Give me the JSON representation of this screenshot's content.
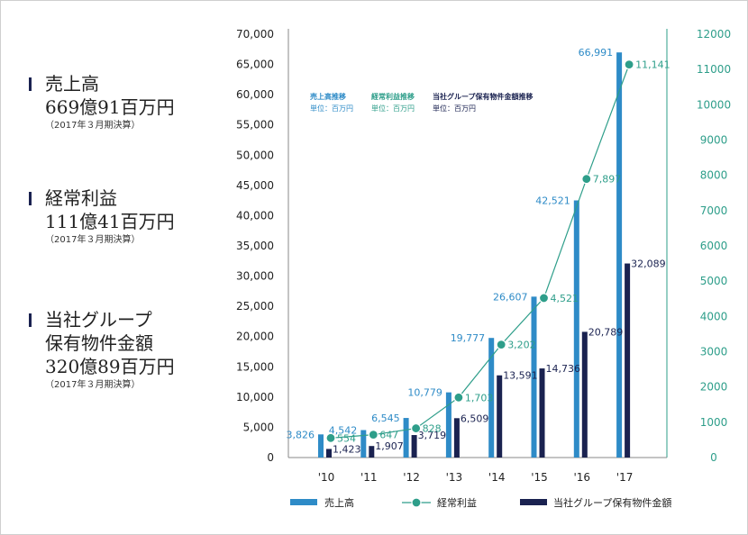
{
  "summary": [
    {
      "label": "売上高",
      "amount": "669億91百万円",
      "note": "（2017年３月期決算）"
    },
    {
      "label": "経常利益",
      "amount": "111億41百万円",
      "note": "（2017年３月期決算）"
    },
    {
      "label": "当社グループ\n保有物件金額",
      "amount": "320億89百万円",
      "note": "（2017年３月期決算）"
    }
  ],
  "colors": {
    "sales": "#2e8bc7",
    "profit": "#2e9e8a",
    "assets": "#1a2250",
    "axis_left": "#222222",
    "axis_right": "#2e9e8a"
  },
  "chart_data": {
    "type": "bar",
    "categories": [
      "'10",
      "'11",
      "'12",
      "'13",
      "'14",
      "'15",
      "'16",
      "'17"
    ],
    "series": [
      {
        "name": "売上高",
        "type": "bar",
        "axis": "left",
        "values": [
          3826,
          4542,
          6545,
          10779,
          19777,
          26607,
          42521,
          66991
        ],
        "labels": [
          "3,826",
          "4,542",
          "6,545",
          "10,779",
          "19,777",
          "26,607",
          "42,521",
          "66,991"
        ]
      },
      {
        "name": "経常利益",
        "type": "line",
        "axis": "right",
        "values": [
          554,
          647,
          828,
          1703,
          3202,
          4521,
          7897,
          11141
        ],
        "labels": [
          "554",
          "647",
          "828",
          "1,703",
          "3,202",
          "4,521",
          "7,897",
          "11,141"
        ]
      },
      {
        "name": "当社グループ保有物件金額",
        "type": "bar",
        "axis": "left",
        "values": [
          1423,
          1907,
          3719,
          6509,
          13591,
          14736,
          20789,
          32089
        ],
        "labels": [
          "1,423",
          "1,907",
          "3,719",
          "6,509",
          "13,591",
          "14,736",
          "20,789",
          "32,089"
        ]
      }
    ],
    "ylim": [
      0,
      70000
    ],
    "yticks": [
      "0",
      "5,000",
      "10,000",
      "15,000",
      "20,000",
      "25,000",
      "30,000",
      "35,000",
      "40,000",
      "45,000",
      "50,000",
      "55,000",
      "60,000",
      "65,000",
      "70,000"
    ],
    "y2lim": [
      0,
      12000
    ],
    "y2ticks": [
      "0",
      "1000",
      "2000",
      "3000",
      "4000",
      "5000",
      "6000",
      "7000",
      "8000",
      "9000",
      "10000",
      "11000",
      "12000"
    ],
    "annotations": [
      {
        "title": "売上高推移",
        "unit": "単位：百万円"
      },
      {
        "title": "経常利益推移",
        "unit": "単位：百万円"
      },
      {
        "title": "当社グループ保有物件金額推移",
        "unit": "単位：百万円"
      }
    ],
    "legend": [
      "売上高",
      "経常利益",
      "当社グループ保有物件金額"
    ],
    "legend_position": "bottom",
    "grid": false
  }
}
